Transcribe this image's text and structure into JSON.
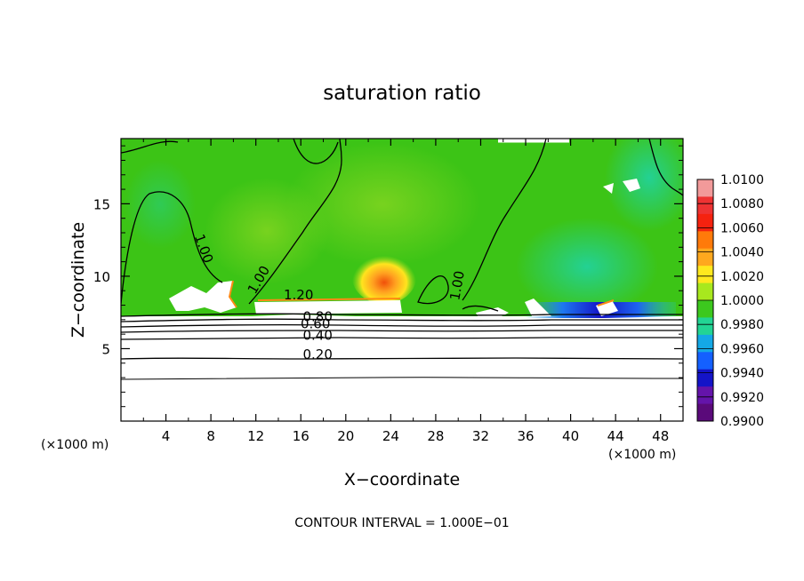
{
  "chart_data": {
    "type": "heatmap",
    "title": "saturation ratio",
    "xlabel": "X−coordinate",
    "ylabel": "Z−coordinate",
    "x_unit_label": "(×1000 m)",
    "y_unit_label": "(×1000 m)",
    "x_ticks": [
      4,
      8,
      12,
      16,
      20,
      24,
      28,
      32,
      36,
      40,
      44,
      48
    ],
    "y_ticks": [
      5,
      10,
      15
    ],
    "xlim": [
      0,
      50
    ],
    "ylim": [
      0,
      19.5
    ],
    "footer": "CONTOUR INTERVAL = 1.000E−01",
    "colorbar": {
      "labels": [
        "1.0100",
        "1.0080",
        "1.0060",
        "1.0040",
        "1.0020",
        "1.0000",
        "0.9980",
        "0.9960",
        "0.9940",
        "0.9920",
        "0.9900"
      ],
      "colors": [
        "#f29a9a",
        "#ee3333",
        "#f5220f",
        "#ff7a0a",
        "#ffa81e",
        "#ffe81e",
        "#a8e81e",
        "#3cc81e",
        "#22d494",
        "#14a8e6",
        "#1460ff",
        "#1414c8",
        "#6414aa",
        "#5a0a7a"
      ]
    },
    "contour_labels": [
      {
        "text": "1.00",
        "x": 7.0,
        "z": 11.8,
        "rotate": 70
      },
      {
        "text": "1.00",
        "x": 12.6,
        "z": 9.6,
        "rotate": -60
      },
      {
        "text": "1.20",
        "x": 15.8,
        "z": 8.4,
        "rotate": 0
      },
      {
        "text": "0.80",
        "x": 17.5,
        "z": 6.9,
        "rotate": 0
      },
      {
        "text": "0.60",
        "x": 17.3,
        "z": 6.4,
        "rotate": 0
      },
      {
        "text": "0.40",
        "x": 17.5,
        "z": 5.6,
        "rotate": 0
      },
      {
        "text": "0.20",
        "x": 17.5,
        "z": 4.3,
        "rotate": 0
      },
      {
        "text": "1.00",
        "x": 30.3,
        "z": 9.3,
        "rotate": -80
      }
    ],
    "bands": [
      {
        "name": "bg",
        "value": 1.0,
        "color": "#38c614"
      },
      {
        "name": "low-bg",
        "value": 1.0,
        "color": "#3ec418"
      }
    ]
  }
}
